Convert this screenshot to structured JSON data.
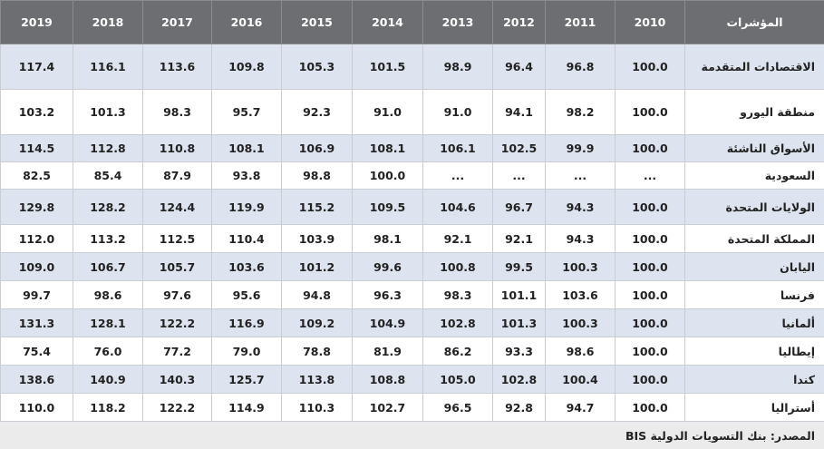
{
  "table": {
    "header": [
      "المؤشرات",
      "2010",
      "2011",
      "2012",
      "2013",
      "2014",
      "2015",
      "2016",
      "2017",
      "2018",
      "2019"
    ],
    "rows": [
      [
        "الاقتصادات المتقدمة",
        "100.0",
        "96.8",
        "96.4",
        "98.9",
        "101.5",
        "105.3",
        "109.8",
        "113.6",
        "116.1",
        "117.4"
      ],
      [
        "منطقة اليورو",
        "100.0",
        "98.2",
        "94.1",
        "91.0",
        "91.0",
        "92.3",
        "95.7",
        "98.3",
        "101.3",
        "103.2"
      ],
      [
        "الأسواق الناشئة",
        "100.0",
        "99.9",
        "102.5",
        "106.1",
        "108.1",
        "106.9",
        "108.1",
        "110.8",
        "112.8",
        "114.5"
      ],
      [
        "السعودية",
        "...",
        "...",
        "...",
        "...",
        "100.0",
        "98.8",
        "93.8",
        "87.9",
        "85.4",
        "82.5"
      ],
      [
        "الولايات المتحدة",
        "100.0",
        "94.3",
        "96.7",
        "104.6",
        "109.5",
        "115.2",
        "119.9",
        "124.4",
        "128.2",
        "129.8"
      ],
      [
        "المملكة المتحدة",
        "100.0",
        "94.3",
        "92.1",
        "92.1",
        "98.1",
        "103.9",
        "110.4",
        "112.5",
        "113.2",
        "112.0"
      ],
      [
        "اليابان",
        "100.0",
        "100.3",
        "99.5",
        "100.8",
        "99.6",
        "101.2",
        "103.6",
        "105.7",
        "106.7",
        "109.0"
      ],
      [
        "فرنسا",
        "100.0",
        "103.6",
        "101.1",
        "98.3",
        "96.3",
        "94.8",
        "95.6",
        "97.6",
        "98.6",
        "99.7"
      ],
      [
        "ألمانيا",
        "100.0",
        "100.3",
        "101.3",
        "102.8",
        "104.9",
        "109.2",
        "116.9",
        "122.2",
        "128.1",
        "131.3"
      ],
      [
        "إيطاليا",
        "100.0",
        "98.6",
        "93.3",
        "86.2",
        "81.9",
        "78.8",
        "79.0",
        "77.2",
        "76.0",
        "75.4"
      ],
      [
        "كندا",
        "100.0",
        "100.4",
        "102.8",
        "105.0",
        "108.8",
        "113.8",
        "125.7",
        "140.3",
        "140.9",
        "138.6"
      ],
      [
        "أستراليا",
        "100.0",
        "94.7",
        "92.8",
        "96.5",
        "102.7",
        "110.3",
        "114.9",
        "122.2",
        "118.2",
        "110.0"
      ]
    ],
    "source": "المصدر: بنك التسويات الدولية BIS"
  }
}
